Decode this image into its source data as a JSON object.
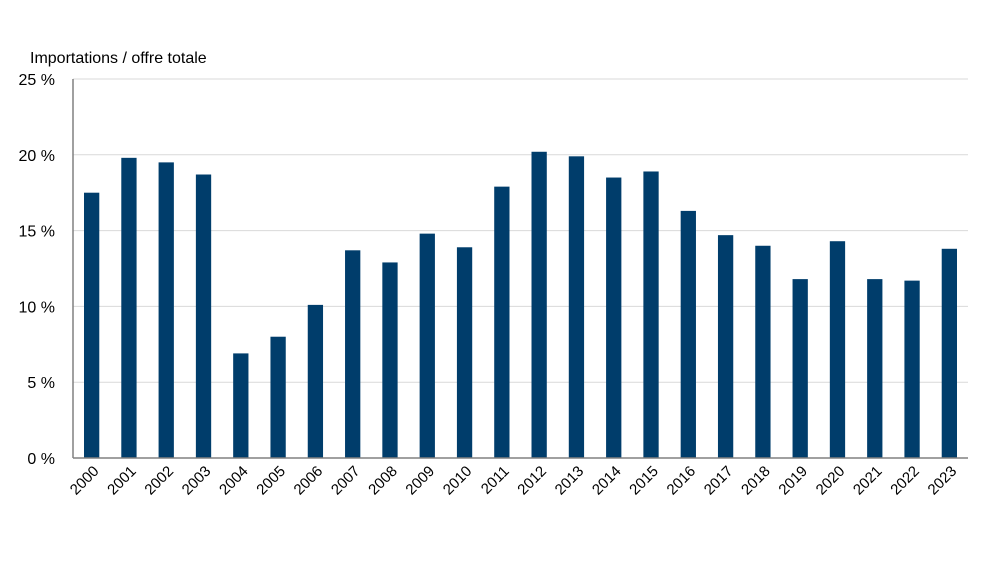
{
  "chart_data": {
    "type": "bar",
    "title": "",
    "ylabel": "Importations / offre totale",
    "xlabel": "",
    "ylim": [
      0,
      25
    ],
    "yticks": [
      0,
      5,
      10,
      15,
      20,
      25
    ],
    "ytick_labels": [
      "0 %",
      "5 %",
      "10 %",
      "15 %",
      "20 %",
      "25 %"
    ],
    "grid": true,
    "bar_color": "#003d6b",
    "categories": [
      "2000",
      "2001",
      "2002",
      "2003",
      "2004",
      "2005",
      "2006",
      "2007",
      "2008",
      "2009",
      "2010",
      "2011",
      "2012",
      "2013",
      "2014",
      "2015",
      "2016",
      "2017",
      "2018",
      "2019",
      "2020",
      "2021",
      "2022",
      "2023"
    ],
    "values": [
      17.5,
      19.8,
      19.5,
      18.7,
      6.9,
      8.0,
      10.1,
      13.7,
      12.9,
      14.8,
      13.9,
      17.9,
      20.2,
      19.9,
      18.5,
      18.9,
      16.3,
      14.7,
      14.0,
      11.8,
      14.3,
      11.8,
      11.7,
      13.8
    ]
  }
}
